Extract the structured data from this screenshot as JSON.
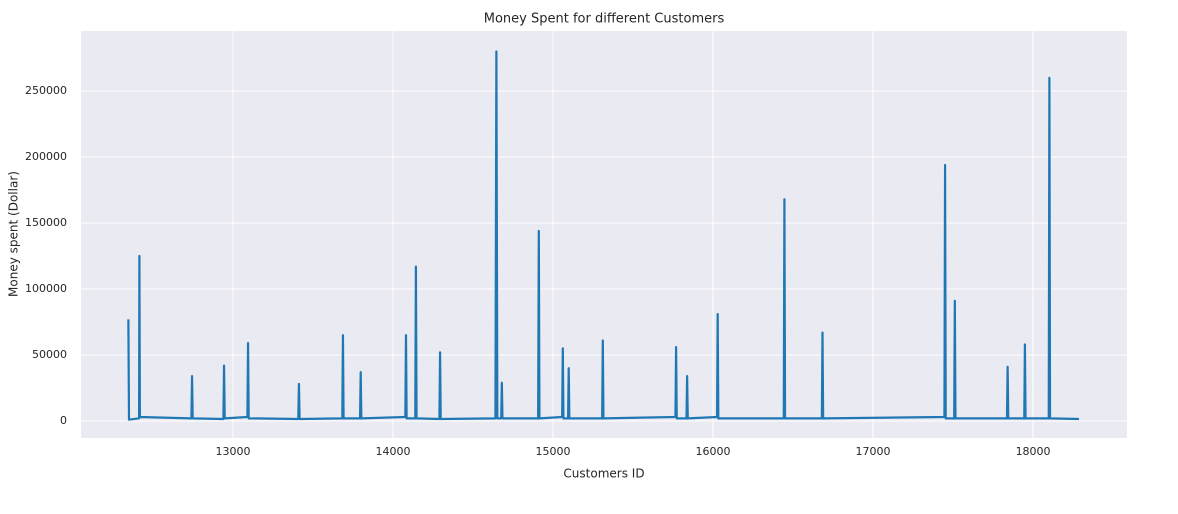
{
  "chart_data": {
    "type": "line",
    "title": "Money Spent for different Customers",
    "x_label": "Customers ID",
    "y_label": "Money spent (Dollar)",
    "color": "#1f77b4",
    "grid": true,
    "xlim": [
      12050,
      18587
    ],
    "ylim": [
      -12900,
      295500
    ],
    "xticks": [
      13000,
      14000,
      15000,
      16000,
      17000,
      18000
    ],
    "yticks": [
      0,
      50000,
      100000,
      150000,
      200000,
      250000
    ],
    "x": [
      12346,
      12350,
      12413,
      12415,
      12418,
      12740,
      12744,
      12748,
      12940,
      12944,
      12948,
      13090,
      13094,
      13098,
      13408,
      13412,
      13416,
      13683,
      13687,
      13691,
      13794,
      13798,
      13802,
      14077,
      14081,
      14085,
      14139,
      14143,
      14147,
      14290,
      14294,
      14298,
      14640,
      14646,
      14652,
      14676,
      14680,
      14684,
      14907,
      14911,
      14915,
      15057,
      15061,
      15065,
      15094,
      15098,
      15102,
      15307,
      15311,
      15315,
      15765,
      15769,
      15773,
      15834,
      15838,
      15842,
      16025,
      16029,
      16033,
      16442,
      16446,
      16450,
      16680,
      16684,
      16688,
      17446,
      17450,
      17454,
      17507,
      17511,
      17515,
      17837,
      17841,
      17845,
      17945,
      17949,
      17953,
      18098,
      18102,
      18106,
      18287
    ],
    "values": [
      77000,
      1000,
      2000,
      125000,
      3000,
      2000,
      34000,
      2000,
      1500,
      42000,
      2000,
      3000,
      59000,
      2000,
      1500,
      28000,
      1500,
      2000,
      65000,
      2000,
      2000,
      37000,
      2000,
      3000,
      65000,
      2000,
      2000,
      117000,
      2000,
      1500,
      52000,
      1500,
      2000,
      280000,
      2000,
      2000,
      29000,
      2000,
      2000,
      144000,
      2000,
      3000,
      55000,
      2000,
      2000,
      40000,
      2000,
      2000,
      61000,
      2000,
      3000,
      56000,
      2000,
      2000,
      34000,
      2000,
      3000,
      81000,
      2000,
      2000,
      168000,
      2000,
      2000,
      67000,
      2000,
      3000,
      194000,
      2000,
      2000,
      91000,
      2000,
      2000,
      41000,
      2000,
      2000,
      58000,
      2000,
      2000,
      260000,
      2000,
      1500
    ]
  }
}
